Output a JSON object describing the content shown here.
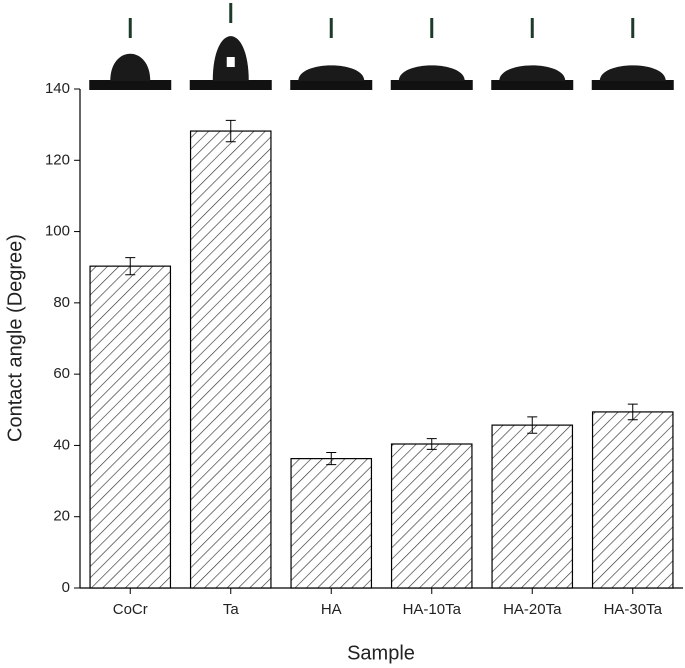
{
  "chart_data": {
    "type": "bar",
    "xlabel": "Sample",
    "ylabel": "Contact angle (Degree)",
    "categories": [
      "CoCr",
      "Ta",
      "HA",
      "HA-10Ta",
      "HA-20Ta",
      "HA-30Ta"
    ],
    "values": [
      90.3,
      128.2,
      36.3,
      40.4,
      45.7,
      49.4
    ],
    "errors": [
      2.4,
      3.0,
      1.7,
      1.5,
      2.3,
      2.2
    ],
    "color": "#000000",
    "ylim": [
      0,
      140
    ],
    "yticks": [
      0,
      20,
      40,
      60,
      80,
      100,
      120,
      140
    ]
  }
}
